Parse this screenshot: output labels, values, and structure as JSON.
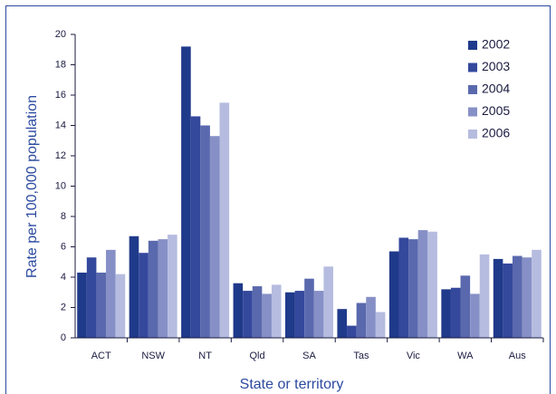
{
  "chart_data": {
    "type": "bar",
    "xlabel": "State or territory",
    "ylabel": "Rate per 100,000 population",
    "categories": [
      "ACT",
      "NSW",
      "NT",
      "Qld",
      "SA",
      "Tas",
      "Vic",
      "WA",
      "Aus"
    ],
    "series": [
      {
        "name": "2002",
        "color": "#1f3a8a",
        "values": [
          4.3,
          6.7,
          19.2,
          3.6,
          3.0,
          1.9,
          5.7,
          3.2,
          5.2
        ]
      },
      {
        "name": "2003",
        "color": "#34489c",
        "values": [
          5.3,
          5.6,
          14.6,
          3.1,
          3.1,
          0.8,
          6.6,
          3.3,
          4.9
        ]
      },
      {
        "name": "2004",
        "color": "#5a69ad",
        "values": [
          4.3,
          6.4,
          14.0,
          3.4,
          3.9,
          2.3,
          6.5,
          4.1,
          5.4
        ]
      },
      {
        "name": "2005",
        "color": "#8790c6",
        "values": [
          5.8,
          6.5,
          13.3,
          2.9,
          3.1,
          2.7,
          7.1,
          2.9,
          5.3
        ]
      },
      {
        "name": "2006",
        "color": "#b6bcdf",
        "values": [
          4.2,
          6.8,
          15.5,
          3.5,
          4.7,
          1.7,
          7.0,
          5.5,
          5.8
        ]
      }
    ],
    "ylim": [
      0,
      20
    ],
    "yticks": [
      0,
      2,
      4,
      6,
      8,
      10,
      12,
      14,
      16,
      18,
      20
    ],
    "legend": "upper right"
  }
}
